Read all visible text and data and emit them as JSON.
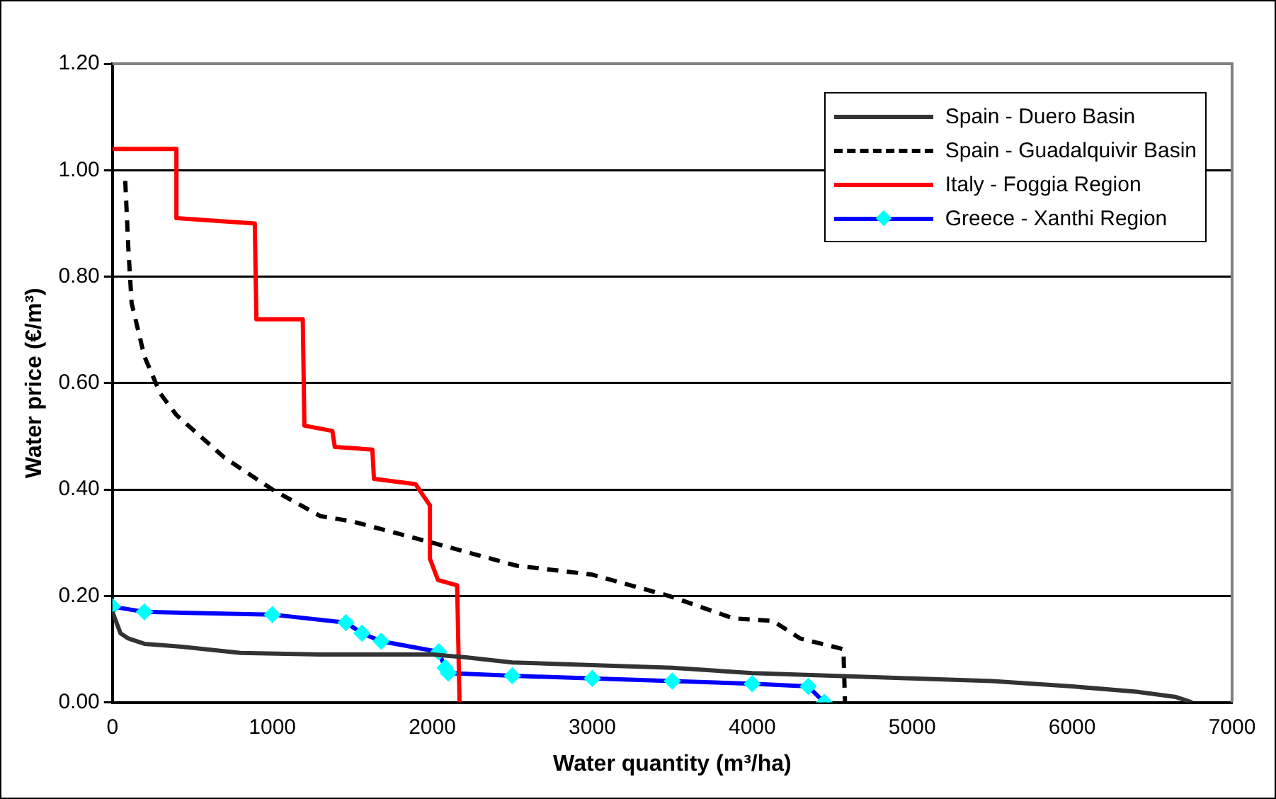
{
  "chart_data": {
    "type": "line",
    "xlabel": "Water quantity (m³/ha)",
    "ylabel": "Water price (€/m³)",
    "xlim": [
      0,
      7000
    ],
    "xticks": [
      0,
      1000,
      2000,
      3000,
      4000,
      5000,
      6000,
      7000
    ],
    "ylim": [
      0,
      1.2
    ],
    "yticks": [
      {
        "value": 0,
        "label": "0.00"
      },
      {
        "value": 0.2,
        "label": "0.20"
      },
      {
        "value": 0.4,
        "label": "0.40"
      },
      {
        "value": 0.6,
        "label": "0.60"
      },
      {
        "value": 0.8,
        "label": "0.80"
      },
      {
        "value": 1,
        "label": "1.00"
      },
      {
        "value": 1.2,
        "label": "1.20"
      }
    ],
    "grid": "y",
    "legend": "top right",
    "marker": "none",
    "line_style": "solid",
    "series": [
      {
        "name": "Spain - Duero Basin",
        "color": "#333333",
        "x": [
          0,
          50,
          100,
          200,
          420,
          800,
          1300,
          2000,
          2200,
          2500,
          3000,
          3500,
          4000,
          4500,
          5000,
          5500,
          6000,
          6400,
          6650,
          6750
        ],
        "values": [
          0.17,
          0.13,
          0.12,
          0.11,
          0.105,
          0.093,
          0.09,
          0.09,
          0.085,
          0.075,
          0.07,
          0.065,
          0.055,
          0.05,
          0.045,
          0.04,
          0.03,
          0.02,
          0.01,
          0
        ]
      },
      {
        "name": "Spain - Guadalquivir Basin",
        "color": "#000000",
        "line_style": "dashed",
        "x": [
          80,
          100,
          120,
          200,
          300,
          400,
          700,
          1000,
          1300,
          1500,
          2000,
          2525,
          3000,
          3480,
          3880,
          4130,
          4300,
          4570,
          4580
        ],
        "values": [
          0.98,
          0.85,
          0.75,
          0.65,
          0.58,
          0.54,
          0.46,
          0.4,
          0.35,
          0.34,
          0.3,
          0.257,
          0.24,
          0.2,
          0.158,
          0.153,
          0.12,
          0.1,
          0
        ]
      },
      {
        "name": "Italy - Foggia Region",
        "color": "#ff0000",
        "x": [
          0,
          400,
          400,
          890,
          900,
          1190,
          1200,
          1375,
          1390,
          1625,
          1635,
          1895,
          1985,
          1985,
          2035,
          2155,
          2170
        ],
        "values": [
          1.04,
          1.04,
          0.91,
          0.9,
          0.72,
          0.72,
          0.52,
          0.51,
          0.48,
          0.475,
          0.42,
          0.41,
          0.37,
          0.27,
          0.23,
          0.22,
          0
        ]
      },
      {
        "name": "Greece - Xanthi Region",
        "color": "#0000ff",
        "marker": "diamond",
        "x": [
          0,
          200,
          1000,
          1460,
          1560,
          1680,
          2040,
          2080,
          2100,
          2500,
          3000,
          3500,
          4000,
          4350,
          4450
        ],
        "values": [
          0.18,
          0.17,
          0.165,
          0.15,
          0.13,
          0.115,
          0.095,
          0.065,
          0.055,
          0.05,
          0.045,
          0.04,
          0.035,
          0.03,
          0
        ]
      }
    ]
  }
}
